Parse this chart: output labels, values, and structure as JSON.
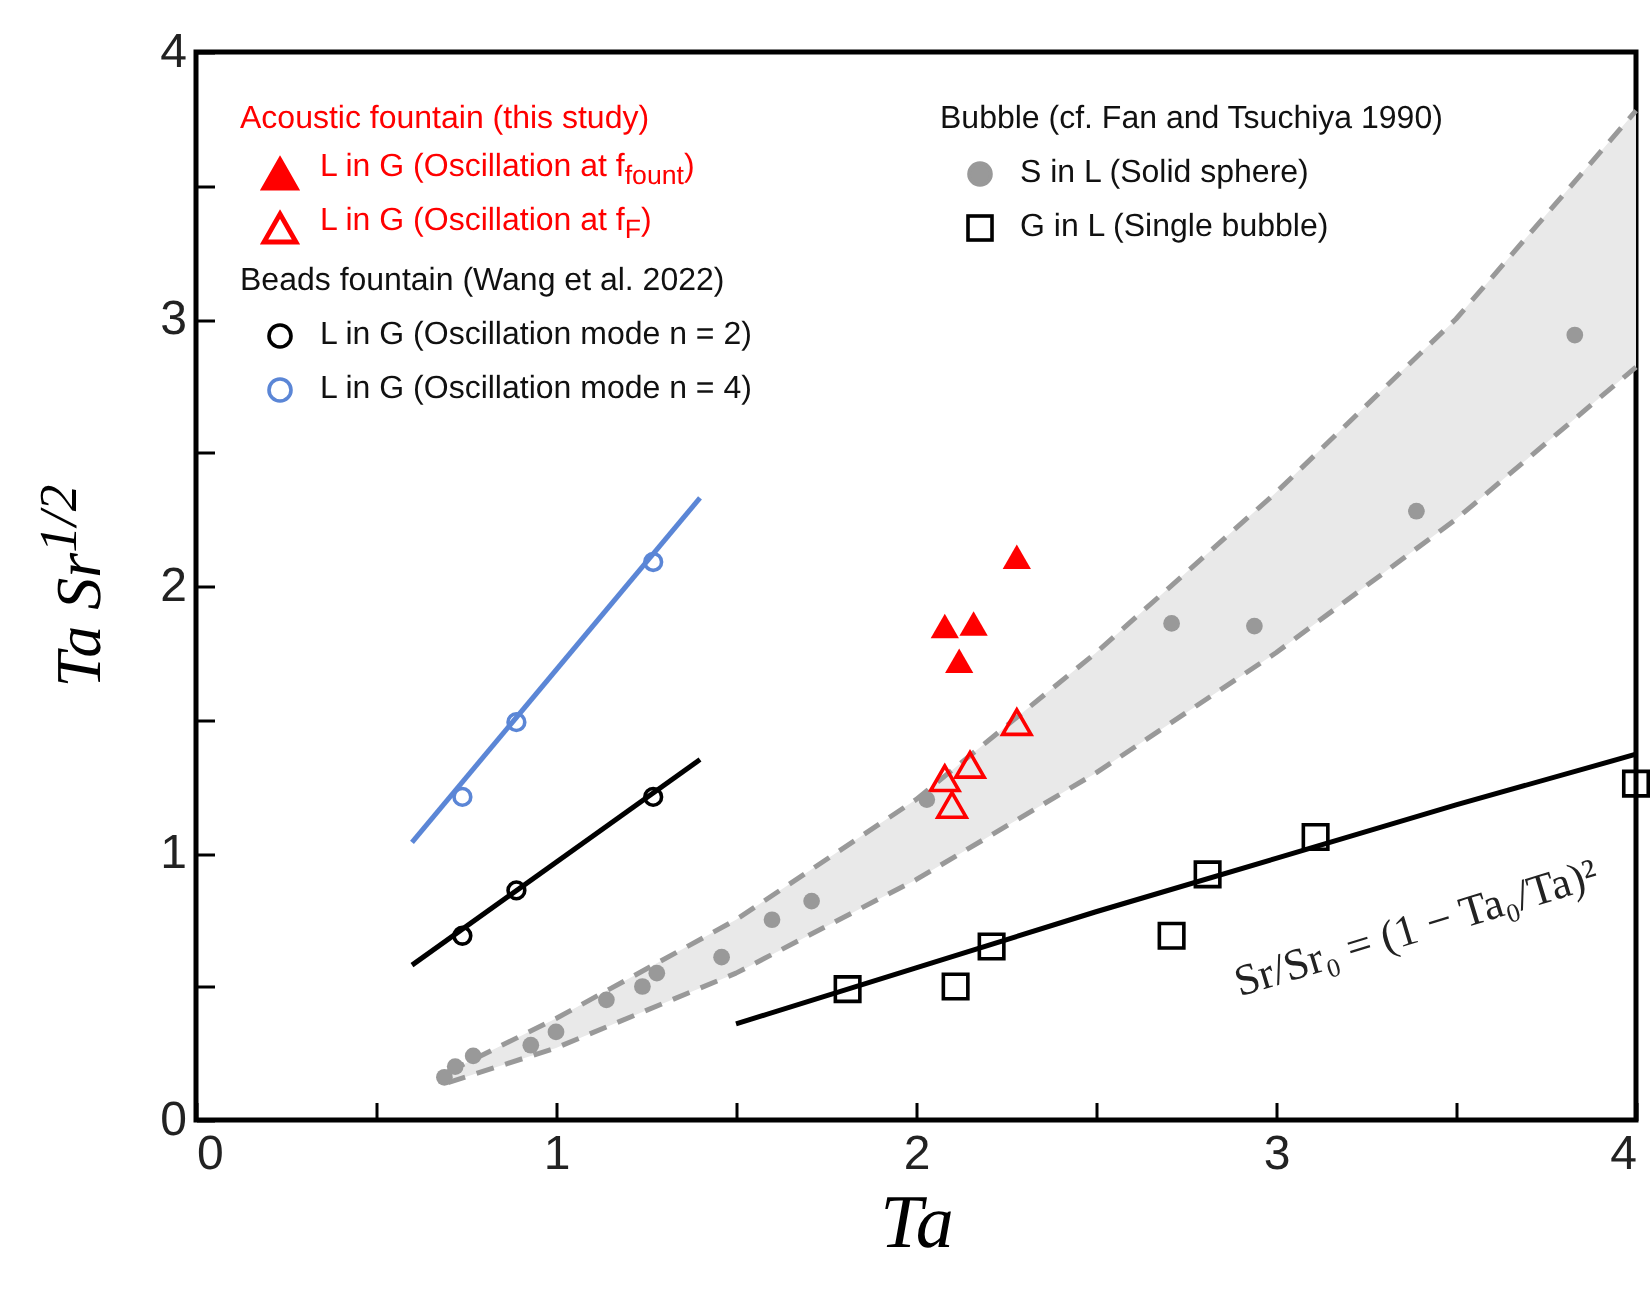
{
  "chart_data": {
    "type": "scatter",
    "xlabel": "Ta",
    "ylabel": "Ta Sr$^{1/2}$",
    "xlim": [
      0,
      4
    ],
    "ylim": [
      0,
      4
    ],
    "xticks": [
      0,
      {
        "value": 0.5,
        "label": null
      },
      1,
      {
        "value": 1.5,
        "label": null
      },
      2,
      {
        "value": 2.5,
        "label": null
      },
      3,
      {
        "value": 3.5,
        "label": null
      },
      4
    ],
    "yticks": [
      0,
      {
        "value": 0.5,
        "label": null
      },
      1,
      {
        "value": 1.5,
        "label": null
      },
      2,
      {
        "value": 2.5,
        "label": null
      },
      3,
      {
        "value": 3.5,
        "label": null
      },
      4
    ],
    "grid": false,
    "legend": "top",
    "annotations": [
      "Acoustic fountain (this study)",
      "Beads fountain (Wang et al. 2022)",
      "Bubble (cf. Fan and Tsuchiya 1990)",
      "Sr/Sr₀ = (1 − Ta₀/Ta)²"
    ],
    "series": [
      {
        "name": "L in G (Oscillation at f$_{fount}$)",
        "color": "#ff0000",
        "marker": "triangle",
        "x": [
          2.08,
          2.12,
          2.16,
          2.28
        ],
        "values": [
          1.85,
          1.72,
          1.86,
          2.11
        ]
      },
      {
        "name": "L in G (Oscillation at f$_{F}$)",
        "color": "#ff0000",
        "marker": "triangle",
        "x": [
          2.08,
          2.1,
          2.15,
          2.28
        ],
        "values": [
          1.28,
          1.18,
          1.33,
          1.49
        ]
      },
      {
        "name": "L in G (Oscillation mode n = 2)",
        "color": "#000000",
        "marker": "circle",
        "x": [
          0.74,
          0.89,
          1.27
        ],
        "values": [
          0.69,
          0.86,
          1.21
        ]
      },
      {
        "name": "L in G (Oscillation mode n = 4)",
        "color": "#5b86d6",
        "marker": "circle",
        "x": [
          0.74,
          0.89,
          1.27
        ],
        "values": [
          1.21,
          1.49,
          2.09
        ]
      },
      {
        "name": "S in L (Solid sphere)",
        "color": "#999999",
        "marker": "circle",
        "x": [
          0.69,
          0.72,
          0.77,
          0.93,
          1.0,
          1.14,
          1.24,
          1.28,
          1.46,
          1.6,
          1.71,
          2.03,
          2.71,
          2.94,
          3.39,
          3.83
        ],
        "values": [
          0.16,
          0.2,
          0.24,
          0.28,
          0.33,
          0.45,
          0.5,
          0.55,
          0.61,
          0.75,
          0.82,
          1.2,
          1.86,
          1.85,
          2.28,
          2.94
        ]
      },
      {
        "name": "G in L (Single bubble)",
        "color": "#000000",
        "marker": "square",
        "x": [
          1.81,
          2.11,
          2.21,
          2.71,
          2.81,
          3.11,
          4.0
        ],
        "values": [
          0.49,
          0.5,
          0.65,
          0.69,
          0.92,
          1.06,
          1.26
        ]
      },
      {
        "type": "line",
        "color": "#000000",
        "line_style": "solid",
        "x": [
          0.6,
          1.4
        ],
        "values": [
          0.58,
          1.35
        ]
      },
      {
        "type": "line",
        "color": "#5b86d6",
        "line_style": "solid",
        "x": [
          0.6,
          1.4
        ],
        "values": [
          1.04,
          2.33
        ]
      },
      {
        "type": "line",
        "color": "#999999",
        "line_style": "dashed",
        "x": [
          0.7,
          1.0,
          1.5,
          2.0,
          2.5,
          3.0,
          3.5,
          4.0
        ],
        "values": [
          0.18,
          0.38,
          0.75,
          1.2,
          1.75,
          2.35,
          3.0,
          3.78
        ],
        "lower": [
          0.14,
          0.27,
          0.55,
          0.9,
          1.3,
          1.75,
          2.25,
          2.82
        ],
        "upper": [
          0.18,
          0.38,
          0.75,
          1.2,
          1.75,
          2.35,
          3.0,
          3.78
        ]
      },
      {
        "type": "line",
        "color": "#999999",
        "line_style": "dashed",
        "x": [
          0.7,
          1.0,
          1.5,
          2.0,
          2.5,
          3.0,
          3.5,
          4.0
        ],
        "values": [
          0.14,
          0.27,
          0.55,
          0.9,
          1.3,
          1.75,
          2.25,
          2.82
        ]
      },
      {
        "type": "line",
        "color": "#000000",
        "line_style": "solid",
        "x": [
          1.5,
          2.0,
          2.5,
          3.0,
          3.5,
          4.0
        ],
        "values": [
          0.36,
          0.57,
          0.78,
          0.98,
          1.18,
          1.37
        ]
      }
    ]
  }
}
